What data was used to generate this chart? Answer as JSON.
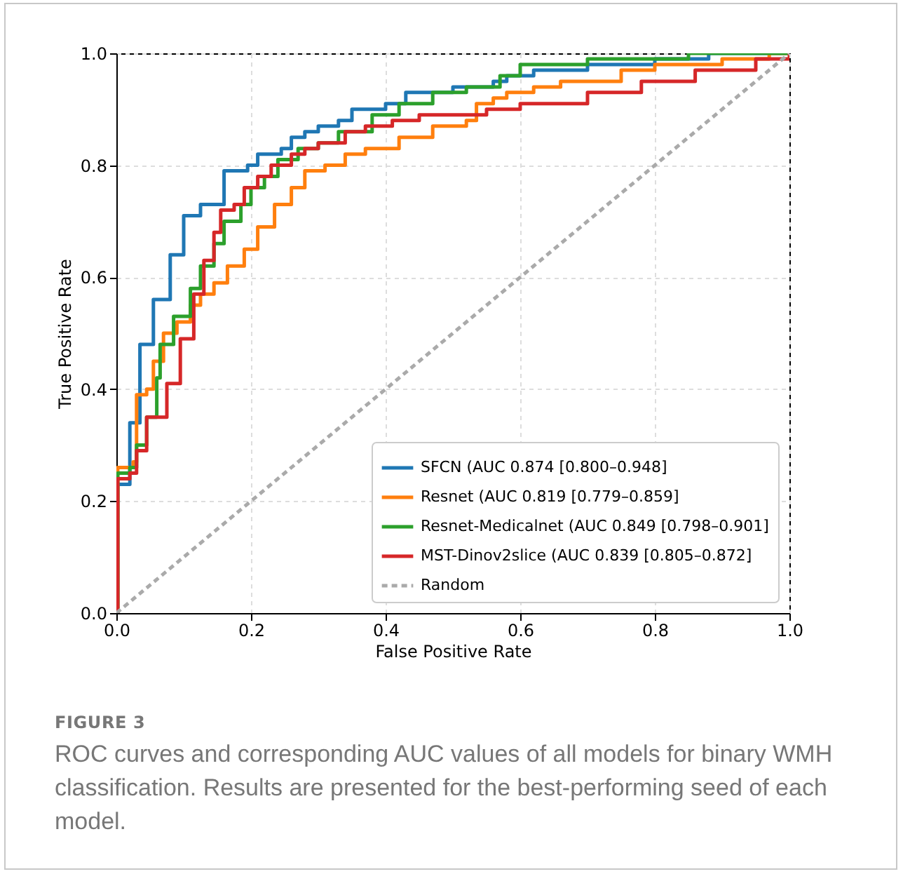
{
  "chart_data": {
    "type": "line",
    "xlabel": "False Positive Rate",
    "ylabel": "True Positive Rate",
    "xlim": [
      0,
      1
    ],
    "ylim": [
      0,
      1
    ],
    "xticks": [
      {
        "value": 0,
        "label": "0.0"
      },
      {
        "value": 0.2,
        "label": "0.2"
      },
      {
        "value": 0.4,
        "label": "0.4"
      },
      {
        "value": 0.6,
        "label": "0.6"
      },
      {
        "value": 0.8,
        "label": "0.8"
      },
      {
        "value": 1,
        "label": "1.0"
      }
    ],
    "yticks": [
      {
        "value": 0,
        "label": "0.0"
      },
      {
        "value": 0.2,
        "label": "0.2"
      },
      {
        "value": 0.4,
        "label": "0.4"
      },
      {
        "value": 0.6,
        "label": "0.6"
      },
      {
        "value": 0.8,
        "label": "0.8"
      },
      {
        "value": 1,
        "label": "1.0"
      }
    ],
    "grid": true,
    "legend": "bottom right",
    "marker": "none",
    "series": [
      {
        "name": "SFCN (AUC 0.874 [0.800–0.948]",
        "type": "step",
        "color": "#1f77b4",
        "line_style": "solid",
        "x": [
          0,
          0.002,
          0.02,
          0.035,
          0.055,
          0.08,
          0.1,
          0.125,
          0.16,
          0.195,
          0.21,
          0.245,
          0.26,
          0.28,
          0.3,
          0.33,
          0.35,
          0.4,
          0.43,
          0.5,
          0.56,
          0.58,
          0.62,
          0.7,
          0.8,
          0.88,
          1
        ],
        "values": [
          0,
          0.23,
          0.34,
          0.48,
          0.56,
          0.64,
          0.71,
          0.73,
          0.79,
          0.8,
          0.82,
          0.83,
          0.85,
          0.86,
          0.87,
          0.88,
          0.9,
          0.91,
          0.93,
          0.94,
          0.95,
          0.96,
          0.97,
          0.98,
          0.99,
          1,
          1
        ]
      },
      {
        "name": "Resnet (AUC 0.819 [0.779–0.859]",
        "type": "step",
        "color": "#ff7f0e",
        "line_style": "solid",
        "x": [
          0,
          0.002,
          0.025,
          0.03,
          0.045,
          0.055,
          0.07,
          0.09,
          0.11,
          0.125,
          0.145,
          0.165,
          0.19,
          0.21,
          0.235,
          0.26,
          0.28,
          0.31,
          0.34,
          0.37,
          0.42,
          0.47,
          0.52,
          0.535,
          0.56,
          0.58,
          0.62,
          0.66,
          0.75,
          0.8,
          0.9,
          0.97,
          1
        ],
        "values": [
          0,
          0.26,
          0.27,
          0.39,
          0.4,
          0.45,
          0.5,
          0.52,
          0.55,
          0.57,
          0.59,
          0.62,
          0.65,
          0.69,
          0.73,
          0.76,
          0.79,
          0.8,
          0.82,
          0.83,
          0.85,
          0.87,
          0.88,
          0.91,
          0.92,
          0.93,
          0.94,
          0.95,
          0.97,
          0.98,
          0.99,
          1,
          1
        ]
      },
      {
        "name": "Resnet-Medicalnet (AUC 0.849 [0.798–0.901]",
        "type": "step",
        "color": "#2ca02c",
        "line_style": "solid",
        "x": [
          0,
          0.002,
          0.02,
          0.03,
          0.045,
          0.06,
          0.065,
          0.085,
          0.11,
          0.125,
          0.145,
          0.16,
          0.185,
          0.2,
          0.22,
          0.24,
          0.27,
          0.3,
          0.33,
          0.38,
          0.42,
          0.47,
          0.52,
          0.57,
          0.6,
          0.7,
          0.85,
          1
        ],
        "values": [
          0,
          0.25,
          0.26,
          0.3,
          0.35,
          0.42,
          0.48,
          0.53,
          0.58,
          0.62,
          0.66,
          0.7,
          0.73,
          0.76,
          0.78,
          0.81,
          0.83,
          0.84,
          0.86,
          0.89,
          0.91,
          0.93,
          0.94,
          0.96,
          0.98,
          0.99,
          1,
          1
        ]
      },
      {
        "name": "MST-Dinov2slice (AUC 0.839 [0.805–0.872]",
        "type": "step",
        "color": "#d62728",
        "line_style": "solid",
        "x": [
          0,
          0.002,
          0.02,
          0.03,
          0.045,
          0.075,
          0.095,
          0.115,
          0.13,
          0.145,
          0.155,
          0.175,
          0.19,
          0.21,
          0.23,
          0.26,
          0.28,
          0.3,
          0.34,
          0.37,
          0.41,
          0.45,
          0.55,
          0.6,
          0.7,
          0.78,
          0.86,
          0.95,
          1
        ],
        "values": [
          0,
          0.24,
          0.25,
          0.29,
          0.35,
          0.41,
          0.49,
          0.57,
          0.63,
          0.68,
          0.72,
          0.73,
          0.76,
          0.78,
          0.8,
          0.82,
          0.83,
          0.84,
          0.86,
          0.87,
          0.88,
          0.89,
          0.9,
          0.91,
          0.93,
          0.95,
          0.97,
          0.99,
          1
        ]
      },
      {
        "name": "Random",
        "type": "line",
        "color": "#aaaaaa",
        "line_style": "dashed",
        "x": [
          0,
          1
        ],
        "values": [
          0,
          1
        ]
      }
    ],
    "annotations": [
      "FIGURE 3",
      "ROC curves and corresponding AUC values of all models for binary WMH classification. Results are presented for the best-performing seed of each model."
    ]
  }
}
